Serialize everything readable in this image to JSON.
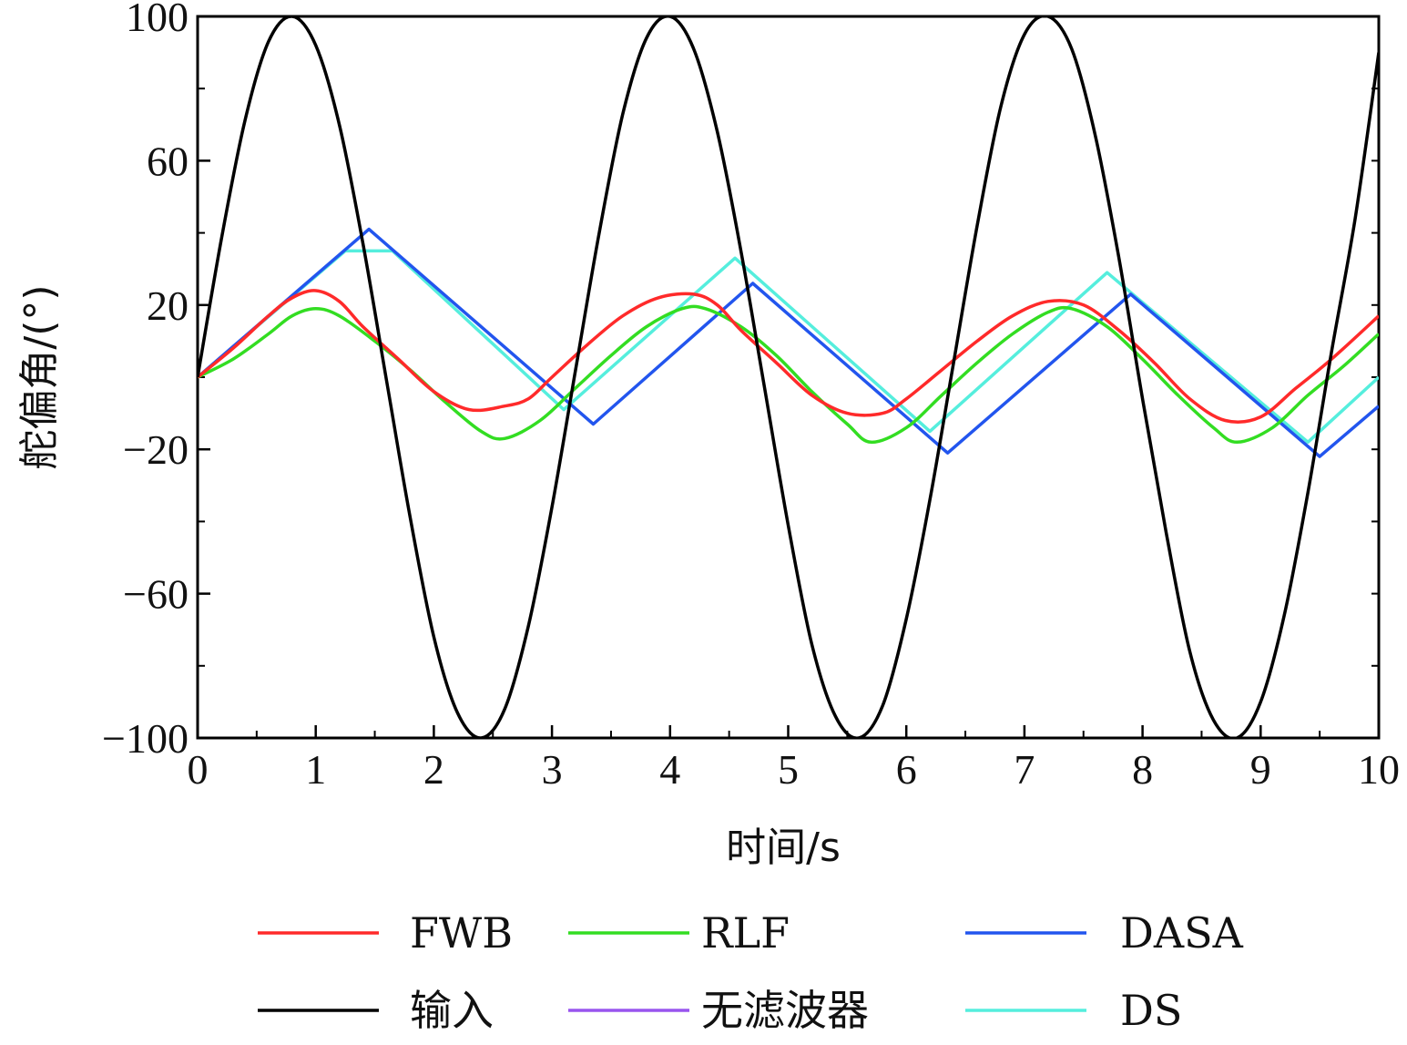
{
  "chart_data": {
    "type": "line",
    "title": "",
    "xlabel": "时间/s",
    "ylabel": "舵偏角/(°)",
    "xlim": [
      0,
      10
    ],
    "ylim": [
      -100,
      100
    ],
    "xticks": [
      "0",
      "1",
      "2",
      "3",
      "4",
      "5",
      "6",
      "7",
      "8",
      "9",
      "10"
    ],
    "yticks": [
      "100",
      "60",
      "20",
      "−20",
      "−60",
      "−100"
    ],
    "ytick_values": [
      100,
      60,
      20,
      -20,
      -60,
      -100
    ],
    "grid": false,
    "legend_position": "bottom",
    "series": [
      {
        "name": "输入",
        "color": "#000000",
        "x": [
          0,
          0.2,
          0.4,
          0.6,
          0.8,
          1.0,
          1.2,
          1.4,
          1.6,
          1.8,
          2.0,
          2.2,
          2.4,
          2.6,
          2.8,
          3.0,
          3.2,
          3.4,
          3.6,
          3.8,
          4.0,
          4.2,
          4.4,
          4.6,
          4.8,
          5.0,
          5.2,
          5.4,
          5.6,
          5.8,
          6.0,
          6.2,
          6.4,
          6.6,
          6.8,
          7.0,
          7.2,
          7.4,
          7.6,
          7.8,
          8.0,
          8.2,
          8.4,
          8.6,
          8.8,
          9.0,
          9.2,
          9.4,
          9.6,
          9.8,
          10.0
        ],
        "y": [
          0,
          38,
          71,
          93,
          100,
          92,
          70,
          37,
          -1,
          -39,
          -72,
          -93,
          -100,
          -92,
          -69,
          -36,
          2,
          40,
          73,
          94,
          100,
          91,
          68,
          35,
          -3,
          -41,
          -74,
          -94,
          -100,
          -91,
          -67,
          -34,
          4,
          42,
          75,
          95,
          100,
          91,
          67,
          33,
          -6,
          -43,
          -76,
          -95,
          -100,
          -90,
          -66,
          -32,
          7,
          44,
          90
        ]
      },
      {
        "name": "FWB",
        "color": "#ff2a2a",
        "x": [
          0,
          0.3,
          0.6,
          0.8,
          1.0,
          1.2,
          1.4,
          1.7,
          2.0,
          2.3,
          2.6,
          2.8,
          3.0,
          3.3,
          3.6,
          3.9,
          4.2,
          4.4,
          4.6,
          4.9,
          5.2,
          5.5,
          5.8,
          6.0,
          6.3,
          6.6,
          6.9,
          7.2,
          7.5,
          7.8,
          8.1,
          8.4,
          8.7,
          9.0,
          9.3,
          9.6,
          10.0
        ],
        "y": [
          0,
          8,
          17,
          22,
          24,
          21,
          14,
          5,
          -4,
          -9,
          -8,
          -6,
          0,
          9,
          17,
          22,
          23,
          20,
          13,
          4,
          -5,
          -10,
          -10,
          -6,
          2,
          10,
          17,
          21,
          20,
          13,
          4,
          -6,
          -12,
          -11,
          -3,
          5,
          17
        ]
      },
      {
        "name": "RLF",
        "color": "#33dd22",
        "x": [
          0,
          0.3,
          0.6,
          0.8,
          1.0,
          1.2,
          1.5,
          1.8,
          2.1,
          2.4,
          2.6,
          2.9,
          3.2,
          3.5,
          3.8,
          4.1,
          4.3,
          4.6,
          4.9,
          5.2,
          5.5,
          5.7,
          6.0,
          6.3,
          6.6,
          6.9,
          7.2,
          7.4,
          7.7,
          8.0,
          8.3,
          8.6,
          8.8,
          9.1,
          9.4,
          9.7,
          10.0
        ],
        "y": [
          0,
          5,
          12,
          17,
          19,
          17,
          10,
          2,
          -7,
          -15,
          -17,
          -12,
          -3,
          6,
          14,
          19,
          19,
          14,
          6,
          -4,
          -13,
          -18,
          -14,
          -5,
          4,
          12,
          18,
          19,
          14,
          5,
          -5,
          -14,
          -18,
          -14,
          -5,
          3,
          12
        ]
      },
      {
        "name": "DASA",
        "color": "#2255ee",
        "x": [
          0,
          1.45,
          3.35,
          4.7,
          6.35,
          7.9,
          9.5,
          10.0
        ],
        "y": [
          0,
          41,
          -13,
          26,
          -21,
          23,
          -22,
          -8
        ]
      },
      {
        "name": "无滤波器",
        "color": "#9955ee",
        "x": [],
        "y": []
      },
      {
        "name": "DS",
        "color": "#55eedd",
        "x": [
          0,
          1.25,
          1.65,
          3.1,
          4.55,
          6.2,
          7.7,
          9.4,
          10.0
        ],
        "y": [
          0,
          35,
          35,
          -9,
          33,
          -15,
          29,
          -18,
          0
        ]
      }
    ]
  }
}
